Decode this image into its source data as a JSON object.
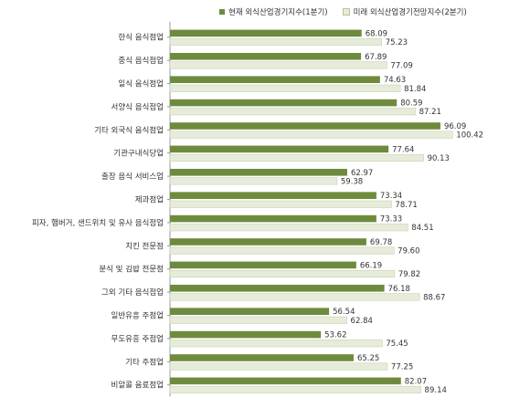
{
  "chart_data": {
    "type": "bar",
    "orientation": "horizontal",
    "categories": [
      "한식 음식점업",
      "중식 음식점업",
      "일식 음식점업",
      "서양식 음식점업",
      "기타 외국식 음식점업",
      "기관구내식당업",
      "출장 음식 서비스업",
      "제과점업",
      "피자, 햄버거, 샌드위치 및 유사 음식점업",
      "치킨 전문점",
      "분식 및 김밥 전문점",
      "그외 기타 음식점업",
      "일반유흥 주점업",
      "무도유흥 주점업",
      "기타 주점업",
      "비알콜 음료점업"
    ],
    "series": [
      {
        "name": "현재 외식산업경기지수(1분기)",
        "color": "#6e8b3d",
        "values": [
          68.09,
          67.89,
          74.63,
          80.59,
          96.09,
          77.64,
          62.97,
          73.34,
          73.33,
          69.78,
          66.19,
          76.18,
          56.54,
          53.62,
          65.25,
          82.07
        ],
        "labels": [
          "68.09",
          "67.89",
          "74.63",
          "80.59",
          "96.09",
          "77.64",
          "62.97",
          "73.34",
          "73.33",
          "69.78",
          "66.19",
          "76.18",
          "56.54",
          "53.62",
          "65.25",
          "82.07"
        ]
      },
      {
        "name": "미래 외식산업경기전망지수(2분기)",
        "color": "#e6ecd9",
        "values": [
          75.23,
          77.09,
          81.84,
          87.21,
          100.42,
          90.13,
          59.38,
          78.71,
          84.51,
          79.6,
          79.82,
          88.67,
          62.84,
          75.45,
          77.25,
          89.14
        ],
        "labels": [
          "75.23",
          "77.09",
          "81.84",
          "87.21",
          "100.42",
          "90.13",
          "59.38",
          "78.71",
          "84.51",
          "79.60",
          "79.82",
          "88.67",
          "62.84",
          "75.45",
          "77.25",
          "89.14"
        ]
      }
    ],
    "xlim": [
      0,
      110
    ],
    "legend_position": "top"
  }
}
